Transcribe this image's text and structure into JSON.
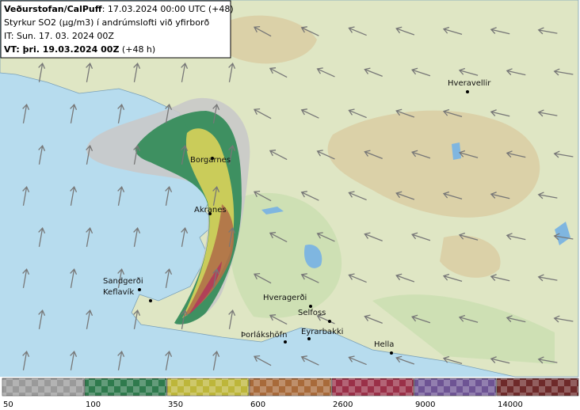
{
  "header": {
    "source": "Veðurstofan/CalPuff",
    "run": ": 17.03.2024 00:00 UTC (+48)",
    "quantity": "Styrkur SO2 (µg/m3) í andrúmslofti við yfirborð",
    "issue_time": "IT: Sun. 17. 03. 2024 00Z",
    "valid_time": "VT: þri. 19.03.2024 00Z",
    "lead": " (+48 h)"
  },
  "places": [
    {
      "name": "Hveravellir"
    },
    {
      "name": "Borgarnes"
    },
    {
      "name": "Akranes"
    },
    {
      "name": "Sandgerði"
    },
    {
      "name": "Keflavík"
    },
    {
      "name": "Hveragerði"
    },
    {
      "name": "Selfoss"
    },
    {
      "name": "Þorlákshöfn"
    },
    {
      "name": "Eyrarbakki"
    },
    {
      "name": "Hella"
    }
  ],
  "legend": {
    "labels": [
      "50",
      "100",
      "350",
      "600",
      "2600",
      "9000",
      "14000"
    ]
  }
}
